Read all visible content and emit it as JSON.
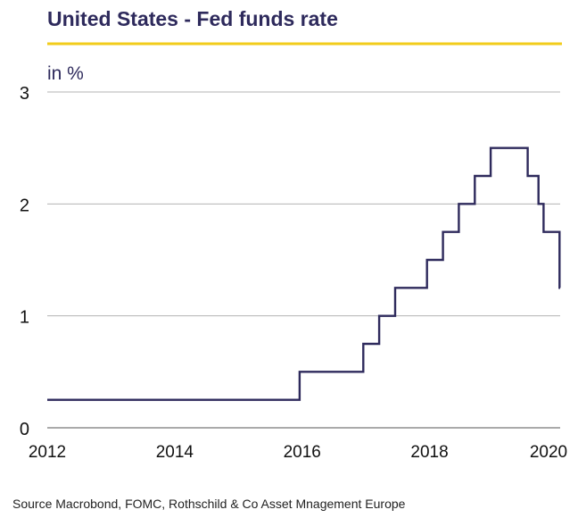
{
  "chart_data": {
    "type": "line",
    "title": "United States - Fed funds rate",
    "unit_label": "in %",
    "source": "Source Macrobond,  FOMC, Rothschild & Co Asset Mnagement  Europe",
    "xlim": [
      2012,
      2020.05
    ],
    "ylim": [
      0,
      3
    ],
    "x_ticks": [
      2012,
      2014,
      2016,
      2018,
      2020
    ],
    "y_ticks": [
      0,
      1,
      2,
      3
    ],
    "grid": true,
    "colors": {
      "line": "#2e2a5c",
      "title": "#2e2a5c",
      "accent_rule": "#f2cc1b",
      "grid": "#b3b3b3"
    },
    "series": [
      {
        "step": "post",
        "x": [
          2012.0,
          2015.96,
          2016.96,
          2017.21,
          2017.46,
          2017.96,
          2018.21,
          2018.46,
          2018.71,
          2018.96,
          2019.54,
          2019.71,
          2019.79,
          2020.04,
          2020.05
        ],
        "values": [
          0.25,
          0.5,
          0.75,
          1.0,
          1.25,
          1.5,
          1.75,
          2.0,
          2.25,
          2.5,
          2.25,
          2.0,
          1.75,
          1.25,
          1.25
        ]
      }
    ]
  }
}
